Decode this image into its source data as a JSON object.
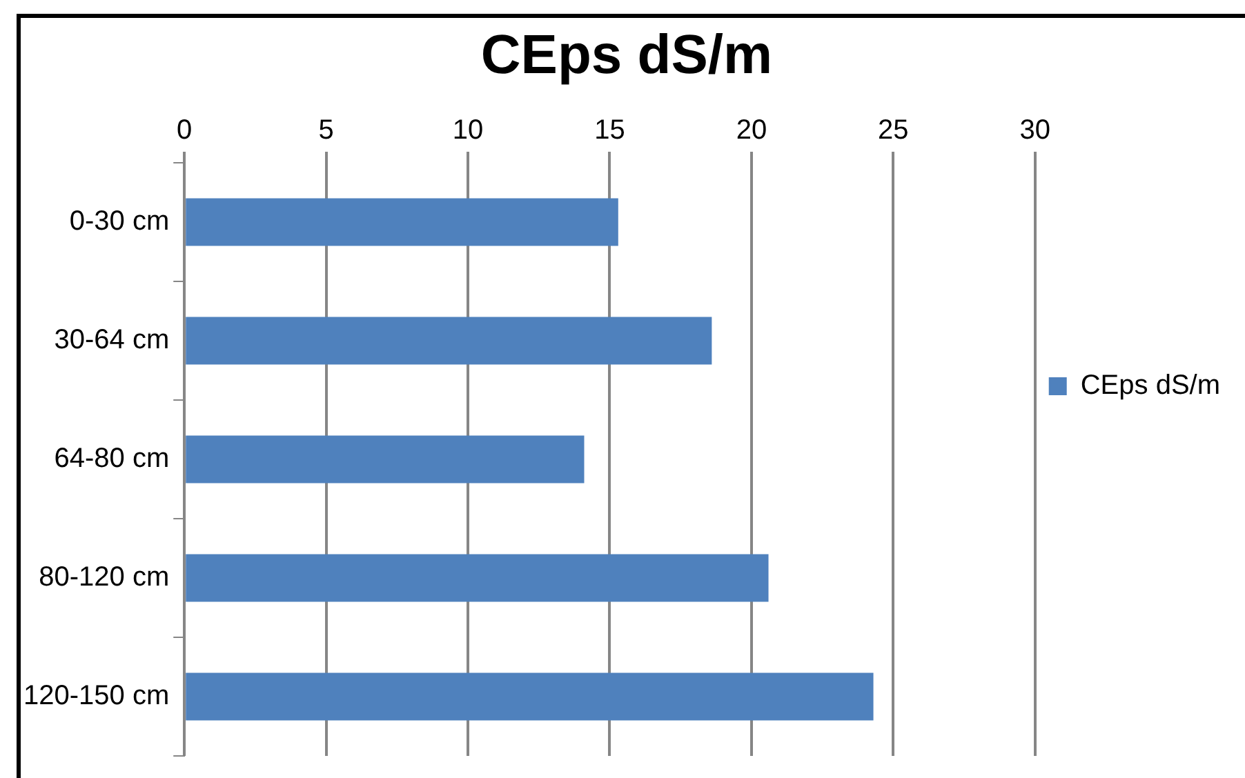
{
  "chart_data": {
    "type": "bar",
    "orientation": "horizontal",
    "title": "CEps dS/m",
    "categories": [
      "0-30 cm",
      "30-64 cm",
      "64-80 cm",
      "80-120 cm",
      "120-150 cm"
    ],
    "series": [
      {
        "name": "CEps dS/m",
        "color": "#4f81bd",
        "values": [
          15.3,
          18.6,
          14.1,
          20.6,
          24.3
        ]
      }
    ],
    "xlim": [
      0,
      30
    ],
    "xticks": [
      0,
      5,
      10,
      15,
      20,
      25,
      30
    ],
    "grid": "x",
    "legend": "right"
  }
}
